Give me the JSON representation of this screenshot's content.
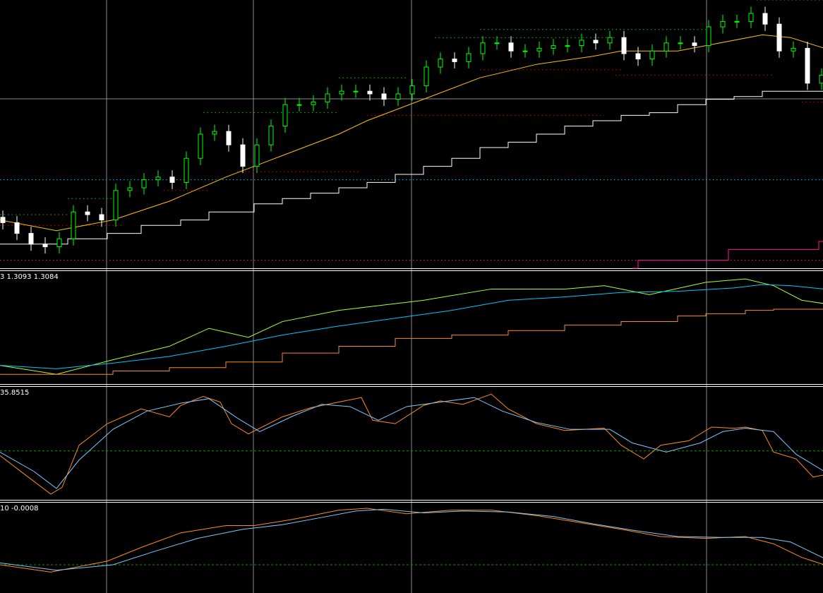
{
  "colors": {
    "background": "#000000",
    "grid": "#c0c0c0",
    "ma": "#ffc000",
    "step": "#ffffff",
    "cyan": "#00c8ff",
    "magenta": "#ff1493",
    "lime": "#adff2f",
    "orange": "#ff8c1a",
    "blue": "#7ec8ff",
    "green_dash": "#00a000",
    "candle_up": "#00ff00",
    "candle_down": "#ffffff"
  },
  "panels": {
    "indicator2_label": "3 1.3093 1.3084",
    "indicator3_label": "35.8515",
    "indicator4_label": "10 -0.0008"
  },
  "chart_data": [
    {
      "type": "candlestick",
      "panel": "main",
      "candles_close": [
        17,
        13,
        9,
        8,
        11,
        21,
        20,
        18,
        29,
        30,
        33,
        34,
        32,
        41,
        50,
        51,
        46,
        38,
        46,
        53,
        61,
        61,
        62,
        65,
        66,
        66,
        65,
        63,
        65,
        68,
        75,
        78,
        77,
        80,
        84,
        84,
        81,
        81,
        82,
        83,
        83,
        85,
        84,
        86,
        80,
        78,
        81,
        84,
        84,
        83,
        90,
        92,
        92,
        95,
        91,
        81,
        82,
        69,
        72
      ],
      "series": [
        {
          "type": "line",
          "color": "ma",
          "points": [
            [
              0,
              18
            ],
            [
              10,
              14
            ],
            [
              20,
              18
            ],
            [
              30,
              25
            ],
            [
              40,
              34
            ],
            [
              50,
              42
            ],
            [
              60,
              50
            ],
            [
              65,
              55
            ],
            [
              75,
              63
            ],
            [
              85,
              71
            ],
            [
              95,
              76
            ],
            [
              105,
              79
            ],
            [
              110,
              81
            ],
            [
              120,
              81
            ],
            [
              125,
              83
            ],
            [
              135,
              87
            ],
            [
              140,
              86
            ],
            [
              146,
              82
            ]
          ]
        },
        {
          "type": "step",
          "color": "step",
          "points": [
            [
              0,
              9
            ],
            [
              12,
              11
            ],
            [
              19,
              13
            ],
            [
              25,
              16
            ],
            [
              32,
              18
            ],
            [
              37,
              21
            ],
            [
              45,
              24
            ],
            [
              50,
              26
            ],
            [
              55,
              28
            ],
            [
              60,
              30
            ],
            [
              65,
              32
            ],
            [
              70,
              35
            ],
            [
              75,
              38
            ],
            [
              80,
              41
            ],
            [
              85,
              45
            ],
            [
              90,
              47
            ],
            [
              95,
              50
            ],
            [
              100,
              53
            ],
            [
              105,
              55
            ],
            [
              110,
              57
            ],
            [
              115,
              58
            ],
            [
              120,
              61
            ],
            [
              125,
              63
            ],
            [
              130,
              64
            ],
            [
              135,
              66
            ],
            [
              146,
              67
            ]
          ]
        },
        {
          "type": "step",
          "color": "magenta",
          "points": [
            [
              112,
              0
            ],
            [
              113,
              3
            ],
            [
              129,
              7
            ],
            [
              145,
              10
            ],
            [
              146,
              10
            ]
          ]
        }
      ],
      "hlines": [
        {
          "level": 33,
          "color": "cyan"
        },
        {
          "level": 3,
          "color": "magenta"
        }
      ],
      "support_levels": [
        [
          20,
          0,
          12
        ],
        [
          26,
          12,
          20
        ],
        [
          58,
          36,
          60
        ],
        [
          71,
          60,
          72
        ],
        [
          86,
          77,
          109
        ],
        [
          89,
          85,
          125
        ],
        [
          100,
          134,
          146
        ]
      ],
      "resistance_levels": [
        [
          16,
          0,
          22
        ],
        [
          29,
          29,
          37
        ],
        [
          36,
          42,
          64
        ],
        [
          57,
          65,
          107
        ],
        [
          74,
          85,
          110
        ],
        [
          72,
          109,
          137
        ],
        [
          62,
          142,
          146
        ]
      ]
    },
    {
      "type": "line",
      "panel": "indicator2",
      "series": [
        {
          "color": "lime",
          "points": [
            [
              0,
              16
            ],
            [
              10,
              8
            ],
            [
              20,
              21
            ],
            [
              30,
              33
            ],
            [
              37,
              49
            ],
            [
              44,
              41
            ],
            [
              50,
              55
            ],
            [
              60,
              65
            ],
            [
              65,
              68
            ],
            [
              75,
              74
            ],
            [
              87,
              84
            ],
            [
              100,
              84
            ],
            [
              107,
              87
            ],
            [
              115,
              79
            ],
            [
              125,
              90
            ],
            [
              132,
              93
            ],
            [
              137,
              87
            ],
            [
              142,
              74
            ],
            [
              146,
              71
            ]
          ]
        },
        {
          "color": "cyan",
          "points": [
            [
              0,
              16
            ],
            [
              10,
              13
            ],
            [
              20,
              18
            ],
            [
              30,
              24
            ],
            [
              40,
              33
            ],
            [
              50,
              43
            ],
            [
              60,
              51
            ],
            [
              70,
              58
            ],
            [
              80,
              65
            ],
            [
              90,
              74
            ],
            [
              100,
              77
            ],
            [
              110,
              81
            ],
            [
              120,
              82
            ],
            [
              130,
              85
            ],
            [
              135,
              88
            ],
            [
              140,
              87
            ],
            [
              146,
              84
            ]
          ]
        },
        {
          "color": "orange",
          "step": true,
          "points": [
            [
              0,
              8
            ],
            [
              20,
              11
            ],
            [
              30,
              14
            ],
            [
              40,
              19
            ],
            [
              50,
              27
            ],
            [
              60,
              33
            ],
            [
              70,
              40
            ],
            [
              80,
              43
            ],
            [
              90,
              47
            ],
            [
              100,
              52
            ],
            [
              110,
              55
            ],
            [
              120,
              60
            ],
            [
              125,
              62
            ],
            [
              132,
              65
            ],
            [
              137,
              66
            ],
            [
              146,
              67
            ]
          ]
        }
      ]
    },
    {
      "type": "line",
      "panel": "indicator3",
      "hlines": [
        {
          "level": 43,
          "color": "green_dash"
        }
      ],
      "series": [
        {
          "color": "orange",
          "points": [
            [
              0,
              39
            ],
            [
              5,
              20
            ],
            [
              9,
              5
            ],
            [
              11,
              11
            ],
            [
              14,
              48
            ],
            [
              19,
              67
            ],
            [
              25,
              80
            ],
            [
              30,
              73
            ],
            [
              32,
              83
            ],
            [
              36,
              91
            ],
            [
              39,
              86
            ],
            [
              41,
              67
            ],
            [
              44,
              58
            ],
            [
              50,
              73
            ],
            [
              55,
              81
            ],
            [
              60,
              86
            ],
            [
              64,
              90
            ],
            [
              66,
              70
            ],
            [
              70,
              67
            ],
            [
              75,
              83
            ],
            [
              78,
              87
            ],
            [
              82,
              84
            ],
            [
              87,
              93
            ],
            [
              90,
              80
            ],
            [
              95,
              67
            ],
            [
              100,
              61
            ],
            [
              107,
              63
            ],
            [
              110,
              48
            ],
            [
              114,
              36
            ],
            [
              117,
              48
            ],
            [
              122,
              52
            ],
            [
              126,
              64
            ],
            [
              130,
              63
            ],
            [
              132,
              64
            ],
            [
              135,
              61
            ],
            [
              137,
              42
            ],
            [
              141,
              36
            ],
            [
              144,
              20
            ],
            [
              146,
              22
            ]
          ]
        },
        {
          "color": "blue",
          "points": [
            [
              0,
              42
            ],
            [
              6,
              25
            ],
            [
              10,
              10
            ],
            [
              14,
              35
            ],
            [
              20,
              62
            ],
            [
              26,
              78
            ],
            [
              32,
              85
            ],
            [
              37,
              89
            ],
            [
              42,
              72
            ],
            [
              46,
              60
            ],
            [
              52,
              74
            ],
            [
              57,
              84
            ],
            [
              62,
              82
            ],
            [
              67,
              70
            ],
            [
              72,
              82
            ],
            [
              78,
              86
            ],
            [
              84,
              90
            ],
            [
              89,
              78
            ],
            [
              95,
              68
            ],
            [
              101,
              62
            ],
            [
              108,
              62
            ],
            [
              112,
              50
            ],
            [
              118,
              42
            ],
            [
              124,
              50
            ],
            [
              128,
              60
            ],
            [
              132,
              63
            ],
            [
              137,
              60
            ],
            [
              141,
              40
            ],
            [
              146,
              25
            ]
          ]
        }
      ]
    },
    {
      "type": "line",
      "panel": "indicator4",
      "hlines": [
        {
          "level": 31,
          "color": "green_dash"
        }
      ],
      "series": [
        {
          "color": "orange",
          "points": [
            [
              0,
              31
            ],
            [
              9,
              23
            ],
            [
              19,
              35
            ],
            [
              25,
              50
            ],
            [
              32,
              66
            ],
            [
              40,
              74
            ],
            [
              45,
              74
            ],
            [
              52,
              81
            ],
            [
              60,
              91
            ],
            [
              65,
              93
            ],
            [
              72,
              87
            ],
            [
              80,
              91
            ],
            [
              87,
              91
            ],
            [
              95,
              85
            ],
            [
              102,
              78
            ],
            [
              110,
              70
            ],
            [
              117,
              62
            ],
            [
              125,
              60
            ],
            [
              132,
              62
            ],
            [
              137,
              54
            ],
            [
              142,
              39
            ],
            [
              146,
              31
            ]
          ]
        },
        {
          "color": "blue",
          "points": [
            [
              0,
              33
            ],
            [
              10,
              25
            ],
            [
              20,
              31
            ],
            [
              27,
              45
            ],
            [
              35,
              60
            ],
            [
              43,
              70
            ],
            [
              50,
              75
            ],
            [
              57,
              83
            ],
            [
              63,
              90
            ],
            [
              68,
              92
            ],
            [
              75,
              88
            ],
            [
              82,
              90
            ],
            [
              90,
              89
            ],
            [
              98,
              84
            ],
            [
              105,
              76
            ],
            [
              112,
              69
            ],
            [
              120,
              62
            ],
            [
              128,
              61
            ],
            [
              135,
              61
            ],
            [
              140,
              56
            ],
            [
              146,
              38
            ]
          ]
        }
      ]
    }
  ]
}
